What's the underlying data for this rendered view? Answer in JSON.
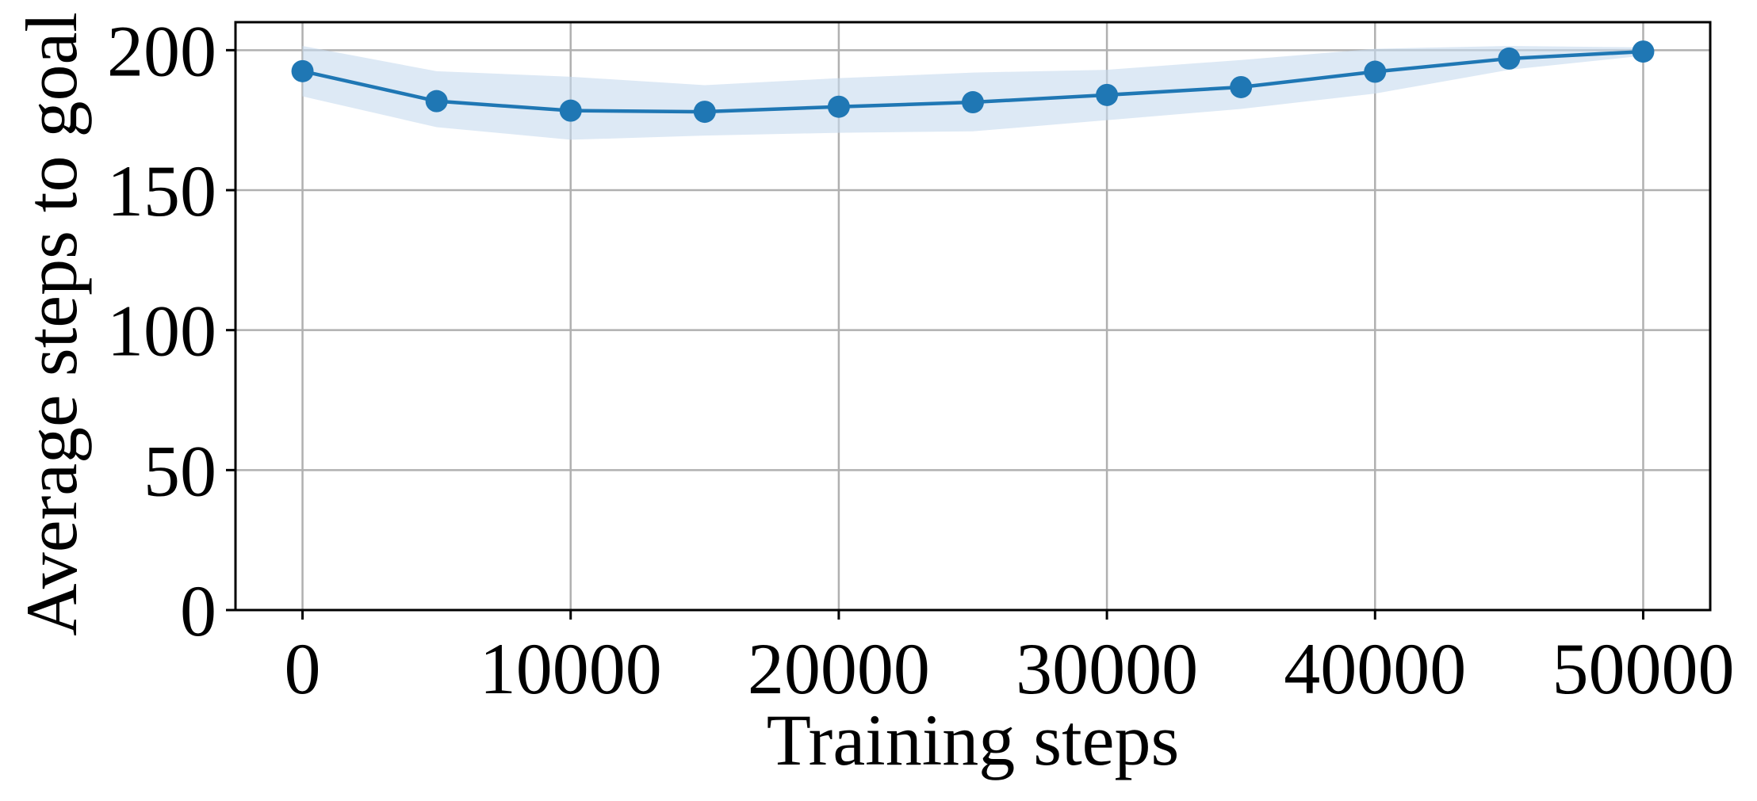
{
  "chart_data": {
    "type": "line",
    "xlabel": "Training steps",
    "ylabel": "Average steps to goal",
    "xlim": [
      -2500,
      52500
    ],
    "ylim": [
      0,
      210
    ],
    "xticks": [
      0,
      10000,
      20000,
      30000,
      40000,
      50000
    ],
    "xtick_labels": [
      "0",
      "10000",
      "20000",
      "30000",
      "40000",
      "50000"
    ],
    "yticks": [
      0,
      50,
      100,
      150,
      200
    ],
    "ytick_labels": [
      "0",
      "50",
      "100",
      "150",
      "200"
    ],
    "grid": true,
    "series": [
      {
        "x": [
          0,
          5000,
          10000,
          15000,
          20000,
          25000,
          30000,
          35000,
          40000,
          45000,
          50000
        ],
        "y": [
          192.5,
          181.8,
          178.4,
          178.0,
          179.8,
          181.4,
          184.0,
          186.8,
          192.3,
          197.0,
          199.5
        ],
        "band_lower": [
          183.5,
          172.5,
          168.0,
          169.5,
          170.5,
          171.0,
          175.0,
          179.0,
          184.5,
          193.0,
          198.0
        ],
        "band_upper": [
          201.5,
          192.5,
          190.5,
          187.5,
          190.0,
          192.0,
          193.0,
          196.5,
          200.5,
          201.5,
          201.0
        ],
        "color": "#1f77b4",
        "band_color": "#c6dbef"
      }
    ]
  }
}
